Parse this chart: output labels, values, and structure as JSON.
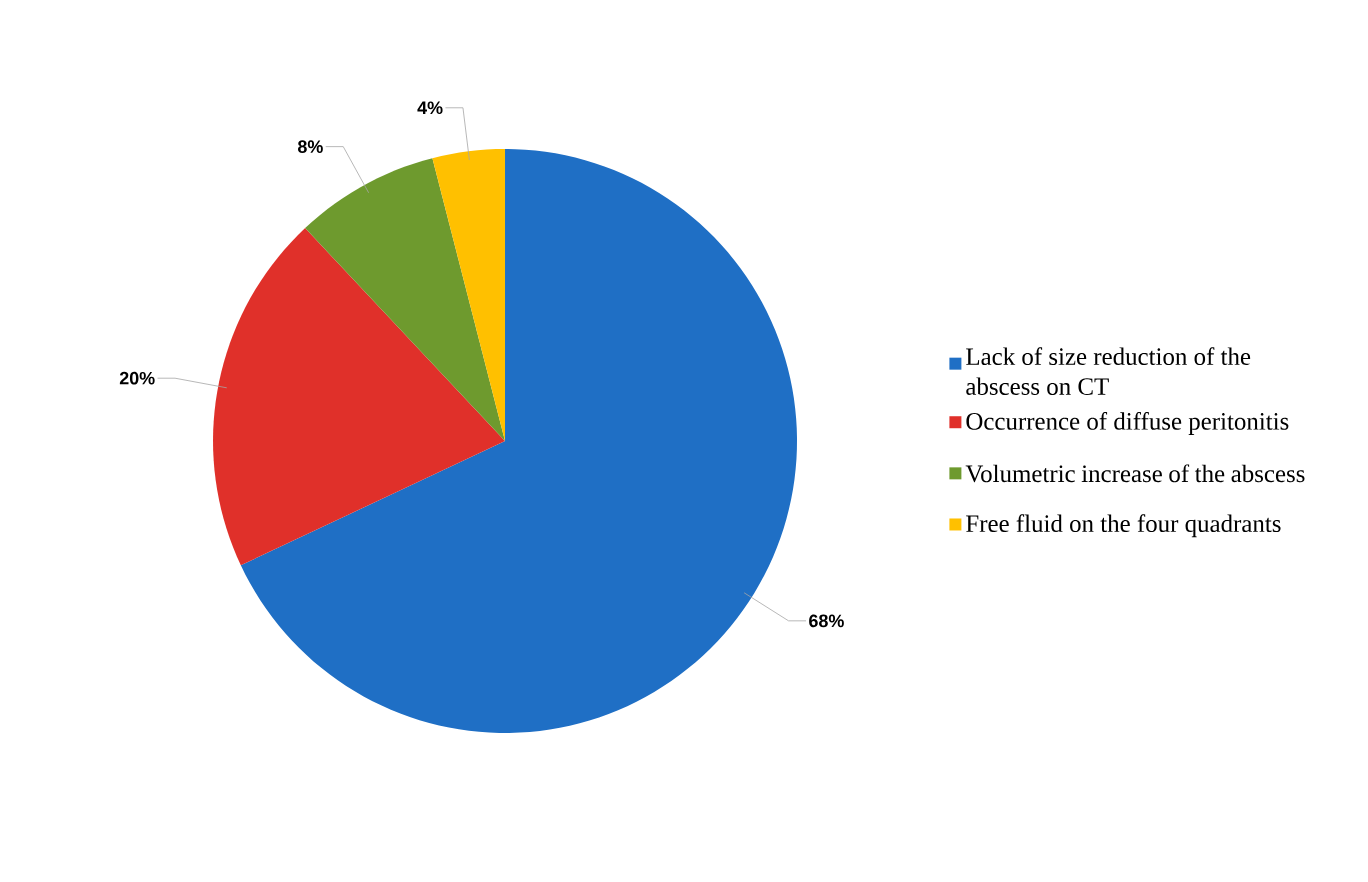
{
  "chart_data": {
    "type": "pie",
    "categories": [
      "Lack of size reduction of the abscess on CT",
      "Occurrence of diffuse peritonitis",
      "Volumetric increase of the abscess",
      "Free fluid on the four quadrants"
    ],
    "values": [
      68,
      20,
      8,
      4
    ],
    "colors": [
      "#1f6fc5",
      "#e0302a",
      "#6e9a2e",
      "#ffc000"
    ],
    "value_labels": [
      "68%",
      "20%",
      "8%",
      "4%"
    ],
    "legend": "right"
  }
}
